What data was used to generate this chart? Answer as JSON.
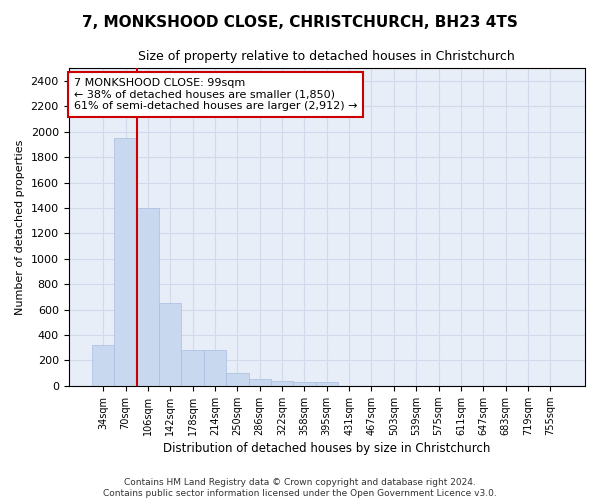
{
  "title": "7, MONKSHOOD CLOSE, CHRISTCHURCH, BH23 4TS",
  "subtitle": "Size of property relative to detached houses in Christchurch",
  "xlabel": "Distribution of detached houses by size in Christchurch",
  "ylabel": "Number of detached properties",
  "categories": [
    "34sqm",
    "70sqm",
    "106sqm",
    "142sqm",
    "178sqm",
    "214sqm",
    "250sqm",
    "286sqm",
    "322sqm",
    "358sqm",
    "395sqm",
    "431sqm",
    "467sqm",
    "503sqm",
    "539sqm",
    "575sqm",
    "611sqm",
    "647sqm",
    "683sqm",
    "719sqm",
    "755sqm"
  ],
  "values": [
    320,
    1950,
    1400,
    650,
    280,
    280,
    100,
    50,
    40,
    30,
    30,
    0,
    0,
    0,
    0,
    0,
    0,
    0,
    0,
    0,
    0
  ],
  "bar_color": "#c8d8ee",
  "bar_edge_color": "#a8bee0",
  "property_line_color": "#cc0000",
  "property_line_index": 2,
  "ylim": [
    0,
    2500
  ],
  "yticks": [
    0,
    200,
    400,
    600,
    800,
    1000,
    1200,
    1400,
    1600,
    1800,
    2000,
    2200,
    2400
  ],
  "annotation_line1": "7 MONKSHOOD CLOSE: 99sqm",
  "annotation_line2": "← 38% of detached houses are smaller (1,850)",
  "annotation_line3": "61% of semi-detached houses are larger (2,912) →",
  "annotation_box_color": "#ffffff",
  "annotation_box_edge_color": "#cc0000",
  "grid_color": "#d0daea",
  "background_color": "#e8eef8",
  "footer_line1": "Contains HM Land Registry data © Crown copyright and database right 2024.",
  "footer_line2": "Contains public sector information licensed under the Open Government Licence v3.0."
}
